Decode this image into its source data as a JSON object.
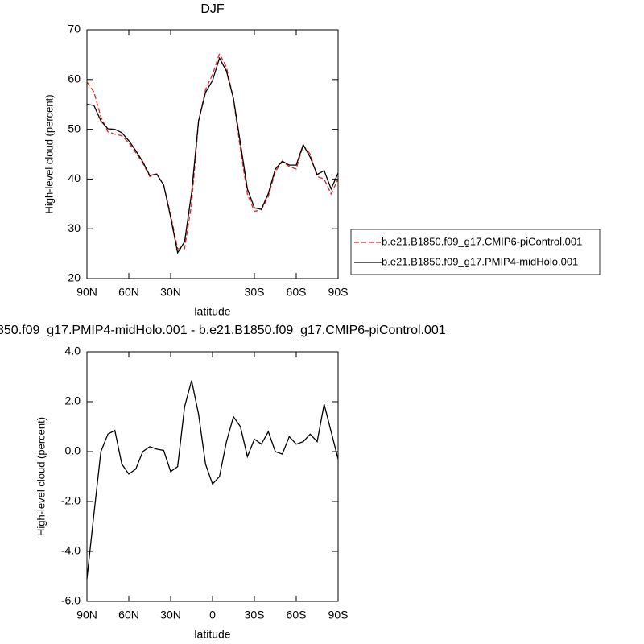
{
  "chart_data": [
    {
      "type": "line",
      "title": "DJF",
      "xlabel": "latitude",
      "ylabel": "High-level cloud (percent)",
      "x": [
        90,
        85,
        80,
        75,
        70,
        65,
        60,
        55,
        50,
        45,
        40,
        35,
        30,
        25,
        20,
        15,
        10,
        5,
        0,
        -5,
        -10,
        -15,
        -20,
        -25,
        -30,
        -35,
        -40,
        -45,
        -50,
        -55,
        -60,
        -65,
        -70,
        -75,
        -80,
        -85,
        -90
      ],
      "series": [
        {
          "name": "b.e21.B1850.f09_g17.CMIP6-piControl.001",
          "color": "#e8242b",
          "dash": true,
          "values": [
            59.5,
            57.5,
            52.5,
            49.5,
            49.0,
            48.7,
            47.3,
            45.3,
            43.2,
            40.5,
            41.0,
            38.8,
            32.8,
            26.0,
            26.0,
            35.0,
            51.5,
            58.0,
            61.0,
            65.2,
            62.5,
            56.0,
            46.0,
            37.0,
            33.5,
            33.8,
            36.5,
            41.5,
            43.5,
            42.5,
            42.0,
            46.8,
            45.0,
            40.5,
            40.0,
            37.0,
            40.0
          ]
        },
        {
          "name": "b.e21.B1850.f09_g17.PMIP4-midHolo.001",
          "color": "#000000",
          "dash": false,
          "values": [
            55.0,
            54.8,
            51.7,
            50.1,
            50.0,
            49.3,
            47.7,
            45.7,
            43.5,
            40.7,
            41.0,
            38.8,
            32.3,
            25.2,
            27.4,
            37.2,
            51.7,
            57.4,
            59.8,
            64.3,
            61.7,
            56.2,
            47.2,
            38.0,
            34.2,
            33.9,
            37.1,
            42.0,
            43.6,
            42.8,
            42.8,
            46.9,
            44.4,
            40.9,
            41.7,
            38.0,
            41.2
          ]
        }
      ],
      "xlim": [
        90,
        -90
      ],
      "xticks": [
        {
          "value": 90,
          "label": "90N"
        },
        {
          "value": 60,
          "label": "60N"
        },
        {
          "value": 30,
          "label": "30N"
        },
        {
          "value": -30,
          "label": "30S"
        },
        {
          "value": -60,
          "label": "60S"
        },
        {
          "value": -90,
          "label": "90S"
        }
      ],
      "ylim": [
        20,
        70
      ],
      "yticks": [
        20,
        30,
        40,
        50,
        60,
        70
      ],
      "legend": "right"
    },
    {
      "type": "line",
      "title": "850.f09_g17.PMIP4-midHolo.001 - b.e21.B1850.f09_g17.CMIP6-piControl.001",
      "xlabel": "latitude",
      "ylabel": "High-level cloud (percent)",
      "x": [
        90,
        85,
        80,
        75,
        70,
        65,
        60,
        55,
        50,
        45,
        40,
        35,
        30,
        25,
        20,
        15,
        10,
        5,
        0,
        -5,
        -10,
        -15,
        -20,
        -25,
        -30,
        -35,
        -40,
        -45,
        -50,
        -55,
        -60,
        -65,
        -70,
        -75,
        -80,
        -85,
        -90
      ],
      "series": [
        {
          "color": "#000000",
          "dash": false,
          "values": [
            -5.1,
            -2.5,
            0.0,
            0.7,
            0.85,
            -0.5,
            -0.9,
            -0.7,
            0.0,
            0.2,
            0.1,
            0.05,
            -0.8,
            -0.6,
            1.8,
            2.85,
            1.5,
            -0.5,
            -1.3,
            -1.0,
            0.4,
            1.4,
            1.0,
            -0.2,
            0.5,
            0.3,
            0.8,
            0.0,
            -0.1,
            0.6,
            0.3,
            0.4,
            0.7,
            0.4,
            1.9,
            0.8,
            -0.3
          ]
        }
      ],
      "xlim": [
        90,
        -90
      ],
      "xticks": [
        {
          "value": 90,
          "label": "90N"
        },
        {
          "value": 60,
          "label": "60N"
        },
        {
          "value": 30,
          "label": "30N"
        },
        0,
        {
          "value": -30,
          "label": "30S"
        },
        {
          "value": -60,
          "label": "60S"
        },
        {
          "value": -90,
          "label": "90S"
        }
      ],
      "ylim": [
        -6,
        4
      ],
      "yticks": [
        {
          "value": -6,
          "label": "-6.0"
        },
        {
          "value": -4,
          "label": "-4.0"
        },
        {
          "value": -2,
          "label": "-2.0"
        },
        {
          "value": 0,
          "label": "0.0"
        },
        {
          "value": 2,
          "label": "2.0"
        },
        {
          "value": 4,
          "label": "4.0"
        }
      ]
    }
  ]
}
